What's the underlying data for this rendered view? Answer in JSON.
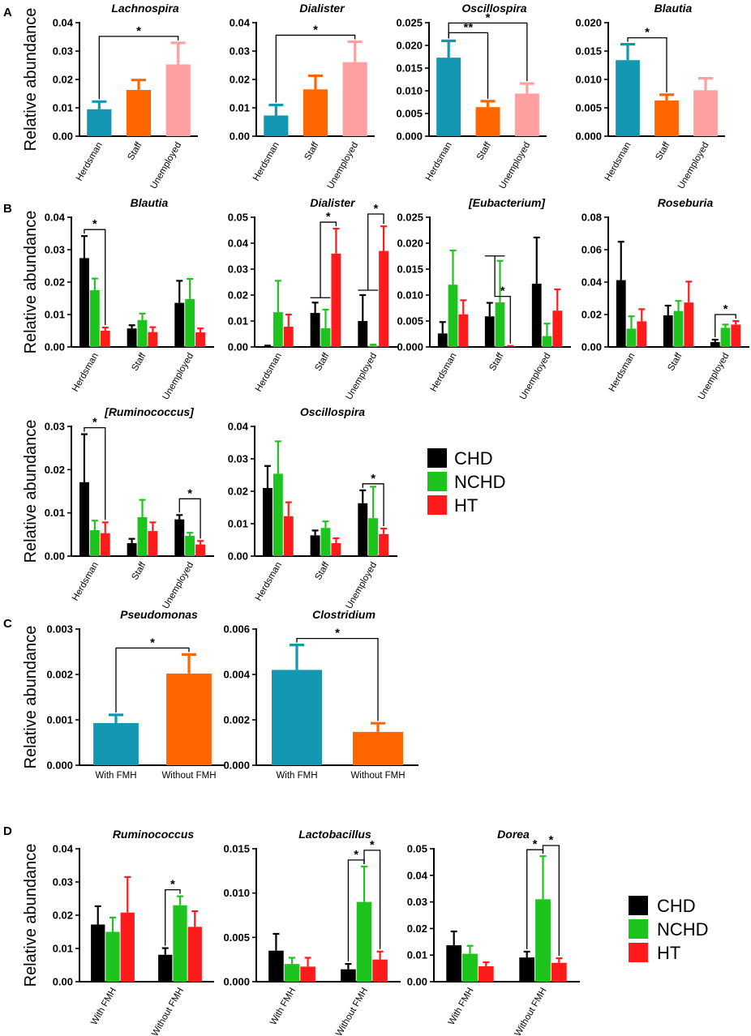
{
  "colors": {
    "CHD": "#000000",
    "NCHD": "#1ec41e",
    "HT": "#ff1b1b",
    "blue": "#1397b2",
    "orange": "#ff6600",
    "pink": "#ffa0a0"
  },
  "panels": {
    "A": "A",
    "B": "B",
    "C": "C",
    "D": "D"
  },
  "legend": [
    {
      "name": "CHD",
      "color": "#000000"
    },
    {
      "name": "NCHD",
      "color": "#1ec41e"
    },
    {
      "name": "HT",
      "color": "#ff1b1b"
    }
  ],
  "chart_data": [
    {
      "id": "A1",
      "panel": "A",
      "type": "bar",
      "title": "Lachnospira",
      "ylabel": "Relative abundance",
      "ylim": [
        0,
        0.04
      ],
      "yticks": [
        "0.00",
        "0.01",
        "0.02",
        "0.03",
        "0.04"
      ],
      "categories": [
        "Herdsman",
        "Staff",
        "Unemployed"
      ],
      "rotated": true,
      "series": [
        {
          "name": "",
          "values": [
            0.0095,
            0.0163,
            0.0253
          ],
          "errors": [
            0.0027,
            0.0035,
            0.0076
          ],
          "colors": [
            "#1397b2",
            "#ff6600",
            "#ffa0a0"
          ]
        }
      ],
      "sig": [
        {
          "a": [
            0,
            0
          ],
          "b": [
            2,
            0
          ],
          "label": "*"
        }
      ]
    },
    {
      "id": "A2",
      "panel": "A",
      "type": "bar",
      "title": "Dialister",
      "ylabel": "",
      "ylim": [
        0,
        0.04
      ],
      "yticks": [
        "0.00",
        "0.01",
        "0.02",
        "0.03",
        "0.04"
      ],
      "categories": [
        "Herdsman",
        "Staff",
        "Unemployed"
      ],
      "rotated": true,
      "series": [
        {
          "name": "",
          "values": [
            0.0073,
            0.0165,
            0.0261
          ],
          "errors": [
            0.0037,
            0.0048,
            0.0072
          ],
          "colors": [
            "#1397b2",
            "#ff6600",
            "#ffa0a0"
          ]
        }
      ],
      "sig": [
        {
          "a": [
            0,
            0
          ],
          "b": [
            2,
            0
          ],
          "label": "*"
        }
      ]
    },
    {
      "id": "A3",
      "panel": "A",
      "type": "bar",
      "title": "Oscillospira",
      "ylabel": "",
      "ylim": [
        0,
        0.025
      ],
      "yticks": [
        "0.000",
        "0.005",
        "0.010",
        "0.015",
        "0.020",
        "0.025"
      ],
      "categories": [
        "Herdsman",
        "Staff",
        "Unemployed"
      ],
      "rotated": true,
      "series": [
        {
          "name": "",
          "values": [
            0.0173,
            0.0064,
            0.0094
          ],
          "errors": [
            0.0037,
            0.0013,
            0.0022
          ],
          "colors": [
            "#1397b2",
            "#ff6600",
            "#ffa0a0"
          ]
        }
      ],
      "sig": [
        {
          "a": [
            0,
            0
          ],
          "b": [
            1,
            0
          ],
          "label": "**"
        },
        {
          "a": [
            0,
            0
          ],
          "b": [
            2,
            0
          ],
          "label": "*"
        }
      ]
    },
    {
      "id": "A4",
      "panel": "A",
      "type": "bar",
      "title": "Blautia",
      "ylabel": "",
      "ylim": [
        0,
        0.02
      ],
      "yticks": [
        "0.000",
        "0.005",
        "0.010",
        "0.015",
        "0.020"
      ],
      "categories": [
        "Herdsman",
        "Staff",
        "Unemployed"
      ],
      "rotated": true,
      "series": [
        {
          "name": "",
          "values": [
            0.0134,
            0.0063,
            0.0081
          ],
          "errors": [
            0.0028,
            0.001,
            0.0021
          ],
          "colors": [
            "#1397b2",
            "#ff6600",
            "#ffa0a0"
          ]
        }
      ],
      "sig": [
        {
          "a": [
            0,
            0
          ],
          "b": [
            1,
            0
          ],
          "label": "*"
        }
      ]
    },
    {
      "id": "B1",
      "panel": "B",
      "type": "bar",
      "title": "Blautia",
      "ylabel": "Relative abundance",
      "ylim": [
        0,
        0.04
      ],
      "yticks": [
        "0.00",
        "0.01",
        "0.02",
        "0.03",
        "0.04"
      ],
      "categories": [
        "Herdsman",
        "Staff",
        "Unemployed"
      ],
      "rotated": true,
      "series": [
        {
          "name": "CHD",
          "values": [
            0.0274,
            0.0057,
            0.0136
          ],
          "errors": [
            0.0068,
            0.001,
            0.0068
          ]
        },
        {
          "name": "NCHD",
          "values": [
            0.0175,
            0.0083,
            0.0148
          ],
          "errors": [
            0.0036,
            0.002,
            0.0062
          ]
        },
        {
          "name": "HT",
          "values": [
            0.005,
            0.0046,
            0.0045
          ],
          "errors": [
            0.001,
            0.0015,
            0.0012
          ]
        }
      ],
      "sig": [
        {
          "a": [
            0,
            0
          ],
          "b": [
            0,
            2
          ],
          "label": "*"
        }
      ]
    },
    {
      "id": "B2",
      "panel": "B",
      "type": "bar",
      "title": "Dialister",
      "ylabel": "",
      "ylim": [
        0,
        0.05
      ],
      "yticks": [
        "0.00",
        "0.01",
        "0.02",
        "0.03",
        "0.04",
        "0.05"
      ],
      "categories": [
        "Herdsman",
        "Staff",
        "Unemployed"
      ],
      "rotated": true,
      "series": [
        {
          "name": "CHD",
          "values": [
            0.0003,
            0.0131,
            0.01
          ],
          "errors": [
            0.0002,
            0.004,
            0.01
          ]
        },
        {
          "name": "NCHD",
          "values": [
            0.0134,
            0.0072,
            0.0005
          ],
          "errors": [
            0.0121,
            0.0072,
            0.0004
          ]
        },
        {
          "name": "HT",
          "values": [
            0.0078,
            0.036,
            0.037
          ],
          "errors": [
            0.0047,
            0.0096,
            0.0095
          ]
        }
      ],
      "sig": [
        {
          "a": [
            1,
            0
          ],
          "b": [
            1,
            2
          ],
          "label": "*",
          "group": true
        },
        {
          "a": [
            2,
            0
          ],
          "b": [
            2,
            2
          ],
          "label": "*",
          "group": true
        }
      ]
    },
    {
      "id": "B3",
      "panel": "B",
      "type": "bar",
      "title": "[Eubacterium]",
      "ylabel": "",
      "ylim": [
        0,
        0.025
      ],
      "yticks": [
        "0.000",
        "0.005",
        "0.010",
        "0.015",
        "0.020",
        "0.025"
      ],
      "categories": [
        "Herdsman",
        "Staff",
        "Unemployed"
      ],
      "rotated": true,
      "series": [
        {
          "name": "CHD",
          "values": [
            0.0026,
            0.0059,
            0.0122
          ],
          "errors": [
            0.0022,
            0.0026,
            0.0089
          ]
        },
        {
          "name": "NCHD",
          "values": [
            0.012,
            0.0086,
            0.0021
          ],
          "errors": [
            0.0066,
            0.008,
            0.0024
          ]
        },
        {
          "name": "HT",
          "values": [
            0.0063,
            0.0001,
            0.007
          ],
          "errors": [
            0.0027,
            0.0001,
            0.0041
          ]
        }
      ],
      "sig": [
        {
          "a": [
            1,
            0
          ],
          "b": [
            1,
            2
          ],
          "label": "*",
          "group": true
        }
      ]
    },
    {
      "id": "B4",
      "panel": "B",
      "type": "bar",
      "title": "Roseburia",
      "ylabel": "",
      "ylim": [
        0,
        0.08
      ],
      "yticks": [
        "0.00",
        "0.02",
        "0.04",
        "0.06",
        "0.08"
      ],
      "categories": [
        "Herdsman",
        "Staff",
        "Unemployed"
      ],
      "rotated": true,
      "series": [
        {
          "name": "CHD",
          "values": [
            0.0412,
            0.0195,
            0.003
          ],
          "errors": [
            0.0237,
            0.006,
            0.0015
          ]
        },
        {
          "name": "NCHD",
          "values": [
            0.0113,
            0.0222,
            0.0118
          ],
          "errors": [
            0.0076,
            0.0062,
            0.002
          ]
        },
        {
          "name": "HT",
          "values": [
            0.0158,
            0.0274,
            0.0138
          ],
          "errors": [
            0.0075,
            0.0129,
            0.0022
          ]
        }
      ],
      "sig": [
        {
          "a": [
            2,
            0
          ],
          "b": [
            2,
            2
          ],
          "label": "*"
        }
      ]
    },
    {
      "id": "B5",
      "panel": "B",
      "type": "bar",
      "title": "[Ruminococcus]",
      "ylabel": "Relative abundance",
      "ylim": [
        0,
        0.03
      ],
      "yticks": [
        "0.00",
        "0.01",
        "0.02",
        "0.03"
      ],
      "categories": [
        "Herdsman",
        "Staff",
        "Unemployed"
      ],
      "rotated": true,
      "series": [
        {
          "name": "CHD",
          "values": [
            0.0171,
            0.003,
            0.0085
          ],
          "errors": [
            0.0111,
            0.001,
            0.001
          ]
        },
        {
          "name": "NCHD",
          "values": [
            0.006,
            0.009,
            0.0047
          ],
          "errors": [
            0.0022,
            0.004,
            0.0007
          ]
        },
        {
          "name": "HT",
          "values": [
            0.0053,
            0.0058,
            0.0027
          ],
          "errors": [
            0.0025,
            0.002,
            0.0008
          ]
        }
      ],
      "sig": [
        {
          "a": [
            0,
            0
          ],
          "b": [
            0,
            2
          ],
          "label": "*"
        },
        {
          "a": [
            2,
            0
          ],
          "b": [
            2,
            2
          ],
          "label": "*"
        }
      ]
    },
    {
      "id": "B6",
      "panel": "B",
      "type": "bar",
      "title": "Oscillospira",
      "ylabel": "",
      "ylim": [
        0,
        0.04
      ],
      "yticks": [
        "0.00",
        "0.01",
        "0.02",
        "0.03",
        "0.04"
      ],
      "categories": [
        "Herdsman",
        "Staff",
        "Unemployed"
      ],
      "rotated": true,
      "series": [
        {
          "name": "CHD",
          "values": [
            0.021,
            0.0064,
            0.0163
          ],
          "errors": [
            0.0068,
            0.0015,
            0.004
          ]
        },
        {
          "name": "NCHD",
          "values": [
            0.0254,
            0.0087,
            0.0117
          ],
          "errors": [
            0.01,
            0.002,
            0.0097
          ]
        },
        {
          "name": "HT",
          "values": [
            0.0123,
            0.004,
            0.0068
          ],
          "errors": [
            0.0043,
            0.0015,
            0.0017
          ]
        }
      ],
      "sig": [
        {
          "a": [
            2,
            0
          ],
          "b": [
            2,
            2
          ],
          "label": "*"
        }
      ]
    },
    {
      "id": "C1",
      "panel": "C",
      "type": "bar",
      "title": "Pseudomonas",
      "ylabel": "Relative abundance",
      "ylim": [
        0,
        0.003
      ],
      "yticks": [
        "0.000",
        "0.001",
        "0.002",
        "0.003"
      ],
      "categories": [
        "With FMH",
        "Without FMH"
      ],
      "rotated": false,
      "series": [
        {
          "name": "",
          "values": [
            0.00093,
            0.00202
          ],
          "errors": [
            0.00018,
            0.00042
          ],
          "colors": [
            "#1397b2",
            "#ff6600"
          ]
        }
      ],
      "sig": [
        {
          "a": [
            0,
            0
          ],
          "b": [
            1,
            0
          ],
          "label": "*"
        }
      ]
    },
    {
      "id": "C2",
      "panel": "C",
      "type": "bar",
      "title": "Clostridium",
      "ylabel": "",
      "ylim": [
        0,
        0.006
      ],
      "yticks": [
        "0.000",
        "0.002",
        "0.004",
        "0.006"
      ],
      "categories": [
        "With FMH",
        "Without FMH"
      ],
      "rotated": false,
      "series": [
        {
          "name": "",
          "values": [
            0.0042,
            0.00147
          ],
          "errors": [
            0.0011,
            0.00038
          ],
          "colors": [
            "#1397b2",
            "#ff6600"
          ]
        }
      ],
      "sig": [
        {
          "a": [
            0,
            0
          ],
          "b": [
            1,
            0
          ],
          "label": "*"
        }
      ]
    },
    {
      "id": "D1",
      "panel": "D",
      "type": "bar",
      "title": "Ruminococcus",
      "ylabel": "Relative abundance",
      "ylim": [
        0,
        0.04
      ],
      "yticks": [
        "0.00",
        "0.01",
        "0.02",
        "0.03",
        "0.04"
      ],
      "categories": [
        "With FMH",
        "Without FMH"
      ],
      "rotated": true,
      "series": [
        {
          "name": "CHD",
          "values": [
            0.0172,
            0.0081
          ],
          "errors": [
            0.0055,
            0.002
          ]
        },
        {
          "name": "NCHD",
          "values": [
            0.015,
            0.023
          ],
          "errors": [
            0.0043,
            0.0027
          ]
        },
        {
          "name": "HT",
          "values": [
            0.0208,
            0.0165
          ],
          "errors": [
            0.0107,
            0.0047
          ]
        }
      ],
      "sig": [
        {
          "a": [
            1,
            0
          ],
          "b": [
            1,
            1
          ],
          "label": "*"
        }
      ]
    },
    {
      "id": "D2",
      "panel": "D",
      "type": "bar",
      "title": "Lactobacillus",
      "ylabel": "",
      "ylim": [
        0,
        0.015
      ],
      "yticks": [
        "0.000",
        "0.005",
        "0.010",
        "0.015"
      ],
      "categories": [
        "With FMH",
        "Without FMH"
      ],
      "rotated": true,
      "series": [
        {
          "name": "CHD",
          "values": [
            0.0035,
            0.0014
          ],
          "errors": [
            0.0019,
            0.0006
          ]
        },
        {
          "name": "NCHD",
          "values": [
            0.002,
            0.009
          ],
          "errors": [
            0.0007,
            0.004
          ]
        },
        {
          "name": "HT",
          "values": [
            0.0017,
            0.0025
          ],
          "errors": [
            0.001,
            0.0009
          ]
        }
      ],
      "sig": [
        {
          "a": [
            1,
            0
          ],
          "b": [
            1,
            1
          ],
          "label": "*"
        },
        {
          "a": [
            1,
            1
          ],
          "b": [
            1,
            2
          ],
          "label": "*"
        }
      ]
    },
    {
      "id": "D3",
      "panel": "D",
      "type": "bar",
      "title": "Dorea",
      "ylabel": "",
      "ylim": [
        0,
        0.05
      ],
      "yticks": [
        "0.00",
        "0.01",
        "0.02",
        "0.03",
        "0.04",
        "0.05"
      ],
      "categories": [
        "With FMH",
        "Without FMH"
      ],
      "rotated": true,
      "series": [
        {
          "name": "CHD",
          "values": [
            0.0137,
            0.0091
          ],
          "errors": [
            0.0052,
            0.0022
          ]
        },
        {
          "name": "NCHD",
          "values": [
            0.0105,
            0.031
          ],
          "errors": [
            0.003,
            0.0162
          ]
        },
        {
          "name": "HT",
          "values": [
            0.0058,
            0.0071
          ],
          "errors": [
            0.0015,
            0.0017
          ]
        }
      ],
      "sig": [
        {
          "a": [
            1,
            0
          ],
          "b": [
            1,
            1
          ],
          "label": "*"
        },
        {
          "a": [
            1,
            1
          ],
          "b": [
            1,
            2
          ],
          "label": "*"
        }
      ]
    }
  ]
}
